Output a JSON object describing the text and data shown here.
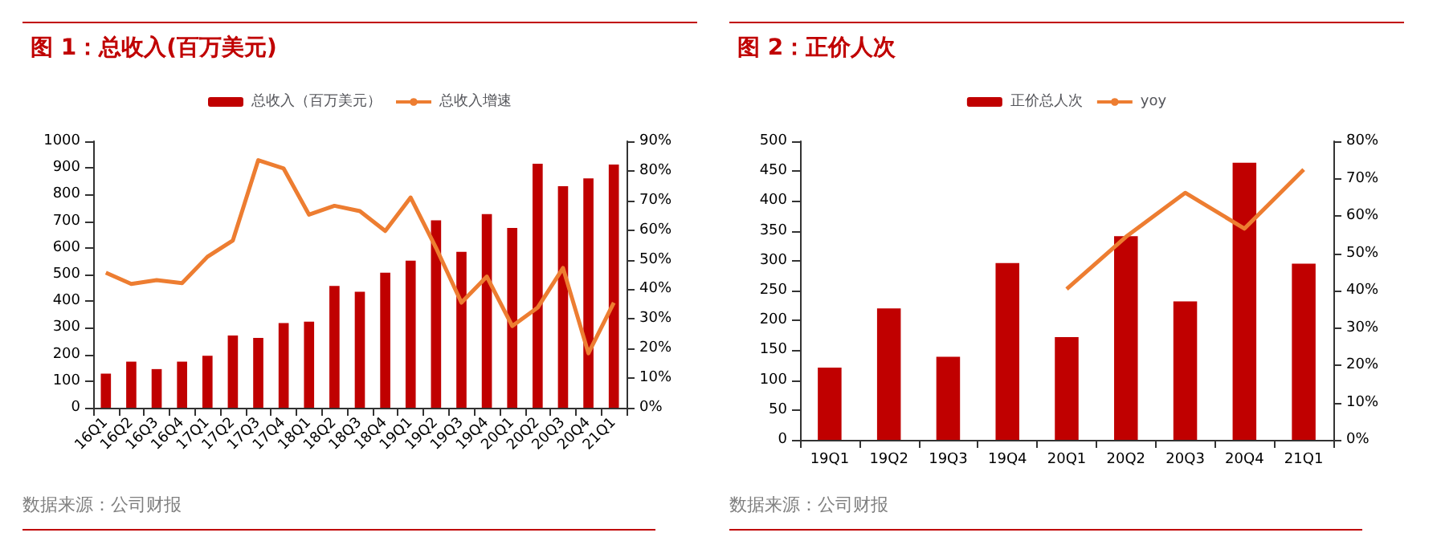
{
  "chart_data": [
    {
      "type": "bar",
      "title": "图 1：总收入(百万美元)",
      "annotations": [
        "数据来源：公司财报"
      ],
      "categories": [
        "16Q1",
        "16Q2",
        "16Q3",
        "16Q4",
        "17Q1",
        "17Q2",
        "17Q3",
        "17Q4",
        "18Q1",
        "18Q2",
        "18Q3",
        "18Q4",
        "19Q1",
        "19Q2",
        "19Q3",
        "19Q4",
        "20Q1",
        "20Q2",
        "20Q3",
        "20Q4",
        "21Q1"
      ],
      "series": [
        {
          "name": "总收入（百万美元）",
          "color": "#c00000",
          "values": [
            128,
            173,
            145,
            173,
            195,
            271,
            262,
            318,
            323,
            457,
            435,
            507,
            552,
            703,
            585,
            727,
            675,
            916,
            831,
            861,
            913
          ]
        },
        {
          "name": "总收入增速",
          "type": "line",
          "axis": "y2",
          "color": "#ed7d31",
          "values": [
            45.6,
            41.8,
            43.1,
            42.1,
            51,
            56.5,
            83.6,
            80.8,
            65.2,
            68.2,
            66.4,
            59.7,
            71,
            54,
            35.5,
            44.3,
            27.6,
            33.8,
            47.2,
            18.4,
            35.5
          ]
        }
      ],
      "ylim": [
        0,
        1000
      ],
      "yticks": [
        0,
        100,
        200,
        300,
        400,
        500,
        600,
        700,
        800,
        900,
        1000
      ],
      "y2lim": [
        0,
        90
      ],
      "y2ticks": [
        {
          "value": 0,
          "label": "0%"
        },
        {
          "value": 10,
          "label": "10%"
        },
        {
          "value": 20,
          "label": "20%"
        },
        {
          "value": 30,
          "label": "30%"
        },
        {
          "value": 40,
          "label": "40%"
        },
        {
          "value": 50,
          "label": "50%"
        },
        {
          "value": 60,
          "label": "60%"
        },
        {
          "value": 70,
          "label": "70%"
        },
        {
          "value": 80,
          "label": "80%"
        },
        {
          "value": 90,
          "label": "90%"
        }
      ],
      "grid": false,
      "legend": "top",
      "marker": "none"
    },
    {
      "type": "bar",
      "title": "图 2：正价人次",
      "annotations": [
        "数据来源：公司财报"
      ],
      "categories": [
        "19Q1",
        "19Q2",
        "19Q3",
        "19Q4",
        "20Q1",
        "20Q2",
        "20Q3",
        "20Q4",
        "21Q1"
      ],
      "series": [
        {
          "name": "正价总人次",
          "color": "#c00000",
          "values": [
            121,
            220,
            139,
            296,
            172,
            341,
            232,
            464,
            295
          ]
        },
        {
          "name": "yoy",
          "type": "line",
          "axis": "y2",
          "color": "#ed7d31",
          "values": [
            null,
            null,
            null,
            null,
            40.4,
            54.4,
            66.2,
            56.6,
            72.4
          ]
        }
      ],
      "ylim": [
        0,
        500
      ],
      "yticks": [
        0,
        50,
        100,
        150,
        200,
        250,
        300,
        350,
        400,
        450,
        500
      ],
      "y2lim": [
        0,
        80
      ],
      "y2ticks": [
        {
          "value": 0,
          "label": "0%"
        },
        {
          "value": 10,
          "label": "10%"
        },
        {
          "value": 20,
          "label": "20%"
        },
        {
          "value": 30,
          "label": "30%"
        },
        {
          "value": 40,
          "label": "40%"
        },
        {
          "value": 50,
          "label": "50%"
        },
        {
          "value": 60,
          "label": "60%"
        },
        {
          "value": 70,
          "label": "70%"
        },
        {
          "value": 80,
          "label": "80%"
        }
      ],
      "grid": false,
      "legend": "top",
      "marker": "none"
    }
  ]
}
